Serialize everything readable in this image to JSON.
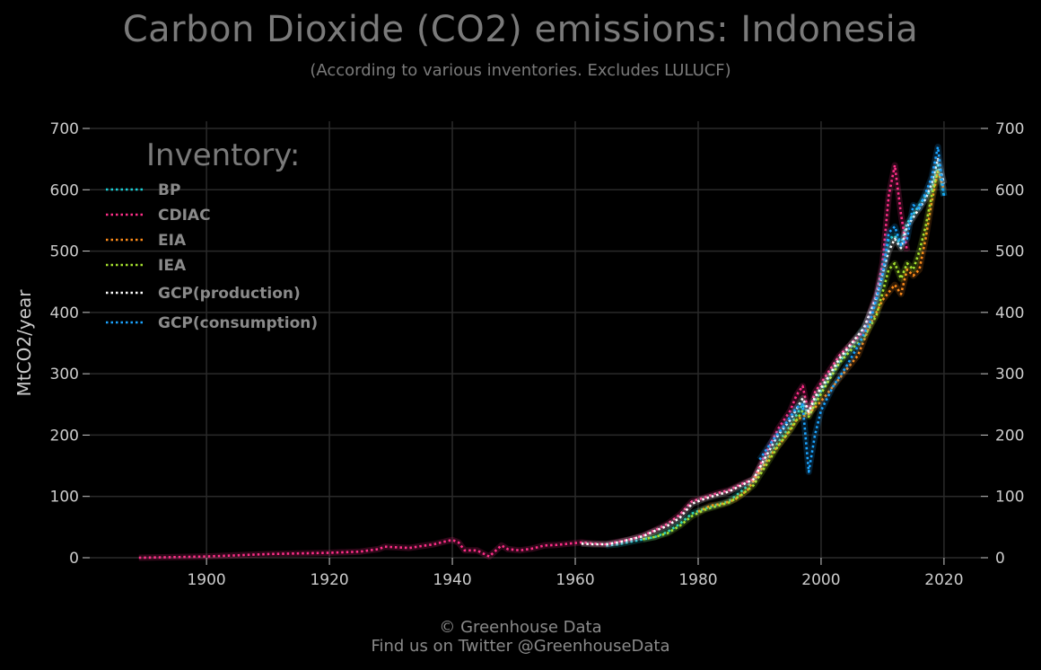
{
  "title": "Carbon Dioxide (CO2) emissions: Indonesia",
  "subtitle": "(According to various inventories. Excludes LULUCF)",
  "footer": {
    "line1": "© Greenhouse Data",
    "line2": "Find us on Twitter @GreenhouseData"
  },
  "colors": {
    "background": "#000000",
    "grid": "#2a2a2a",
    "text": "#7a7a7a",
    "tick": "#cccccc"
  },
  "chart_data": {
    "type": "line",
    "title": "Carbon Dioxide (CO2) emissions: Indonesia",
    "subtitle": "(According to various inventories. Excludes LULUCF)",
    "xlabel": "",
    "ylabel": "MtCO2/year",
    "xlim": [
      1881,
      2026
    ],
    "ylim": [
      0,
      700
    ],
    "xticks": [
      1900,
      1920,
      1940,
      1960,
      1980,
      2000,
      2020
    ],
    "yticks": [
      0,
      100,
      200,
      300,
      400,
      500,
      600,
      700
    ],
    "grid": true,
    "legend": {
      "title": "Inventory:",
      "placement": "top-left"
    },
    "line_style": "dotted",
    "series": [
      {
        "name": "BP",
        "color": "#19d3da",
        "x": [
          1965,
          1967,
          1969,
          1971,
          1973,
          1975,
          1977,
          1979,
          1981,
          1983,
          1985,
          1987,
          1989,
          1991,
          1993,
          1995,
          1997,
          1998,
          1999,
          2001,
          2003,
          2005,
          2007,
          2009,
          2011,
          2012,
          2013,
          2014,
          2015,
          2016,
          2017,
          2018,
          2019,
          2020
        ],
        "y": [
          20,
          22,
          26,
          30,
          34,
          42,
          55,
          72,
          80,
          86,
          92,
          108,
          125,
          158,
          188,
          215,
          250,
          235,
          255,
          290,
          320,
          345,
          375,
          420,
          520,
          525,
          510,
          545,
          560,
          575,
          590,
          600,
          640,
          590
        ]
      },
      {
        "name": "CDIAC",
        "color": "#ff2e88",
        "x": [
          1889,
          1895,
          1900,
          1905,
          1910,
          1915,
          1920,
          1925,
          1928,
          1929,
          1931,
          1933,
          1935,
          1937,
          1939,
          1940,
          1941,
          1942,
          1944,
          1946,
          1948,
          1949,
          1951,
          1953,
          1955,
          1957,
          1959,
          1961,
          1963,
          1965,
          1967,
          1969,
          1971,
          1973,
          1975,
          1977,
          1979,
          1981,
          1983,
          1985,
          1987,
          1989,
          1991,
          1993,
          1995,
          1996,
          1997,
          1998,
          1999,
          2001,
          2003,
          2005,
          2007,
          2009,
          2010,
          2011,
          2012,
          2013,
          2014
        ],
        "y": [
          0,
          1,
          2,
          4,
          6,
          7,
          8,
          10,
          14,
          18,
          17,
          16,
          19,
          22,
          27,
          29,
          25,
          12,
          12,
          2,
          20,
          14,
          12,
          15,
          20,
          21,
          23,
          25,
          23,
          22,
          26,
          30,
          36,
          45,
          55,
          70,
          92,
          98,
          105,
          110,
          120,
          128,
          170,
          210,
          240,
          265,
          280,
          235,
          270,
          300,
          330,
          350,
          370,
          430,
          480,
          590,
          640,
          560,
          500
        ]
      },
      {
        "name": "EIA",
        "color": "#ff8c1a",
        "x": [
          1980,
          1982,
          1984,
          1986,
          1988,
          1990,
          1992,
          1994,
          1996,
          1998,
          2000,
          2002,
          2004,
          2006,
          2008,
          2010,
          2012,
          2013,
          2014,
          2015,
          2016,
          2017,
          2018,
          2019,
          2020
        ],
        "y": [
          75,
          85,
          88,
          95,
          110,
          140,
          170,
          195,
          225,
          235,
          255,
          280,
          305,
          330,
          380,
          420,
          445,
          430,
          470,
          460,
          470,
          520,
          580,
          630,
          600
        ]
      },
      {
        "name": "IEA",
        "color": "#a6e22e",
        "x": [
          1971,
          1973,
          1975,
          1977,
          1979,
          1981,
          1983,
          1985,
          1987,
          1989,
          1991,
          1993,
          1995,
          1997,
          1998,
          1999,
          2001,
          2003,
          2005,
          2007,
          2009,
          2011,
          2012,
          2013,
          2014,
          2015,
          2016,
          2017,
          2018,
          2019
        ],
        "y": [
          30,
          34,
          40,
          52,
          68,
          78,
          84,
          90,
          102,
          118,
          150,
          182,
          208,
          240,
          230,
          250,
          285,
          318,
          340,
          360,
          395,
          470,
          480,
          455,
          480,
          470,
          500,
          540,
          590,
          630
        ]
      },
      {
        "name": "GCP(production)",
        "color": "#ffffff",
        "x": [
          1961,
          1963,
          1965,
          1967,
          1969,
          1971,
          1973,
          1975,
          1977,
          1979,
          1981,
          1983,
          1985,
          1987,
          1989,
          1991,
          1993,
          1995,
          1997,
          1998,
          1999,
          2001,
          2003,
          2005,
          2007,
          2009,
          2011,
          2012,
          2013,
          2014,
          2015,
          2016,
          2017,
          2018,
          2019,
          2020
        ],
        "y": [
          23,
          22,
          22,
          25,
          30,
          35,
          44,
          52,
          65,
          88,
          96,
          102,
          108,
          118,
          128,
          165,
          200,
          225,
          260,
          238,
          262,
          292,
          325,
          350,
          375,
          425,
          500,
          520,
          505,
          540,
          555,
          570,
          585,
          610,
          650,
          610
        ]
      },
      {
        "name": "GCP(consumption)",
        "color": "#1aa3ff",
        "x": [
          1990,
          1992,
          1994,
          1996,
          1997,
          1998,
          1999,
          2000,
          2002,
          2004,
          2006,
          2008,
          2010,
          2011,
          2012,
          2013,
          2014,
          2015,
          2016,
          2017,
          2018,
          2019,
          2020
        ],
        "y": [
          160,
          190,
          215,
          245,
          250,
          140,
          200,
          240,
          280,
          310,
          345,
          385,
          460,
          530,
          540,
          510,
          520,
          575,
          570,
          595,
          620,
          670,
          590
        ]
      }
    ]
  }
}
